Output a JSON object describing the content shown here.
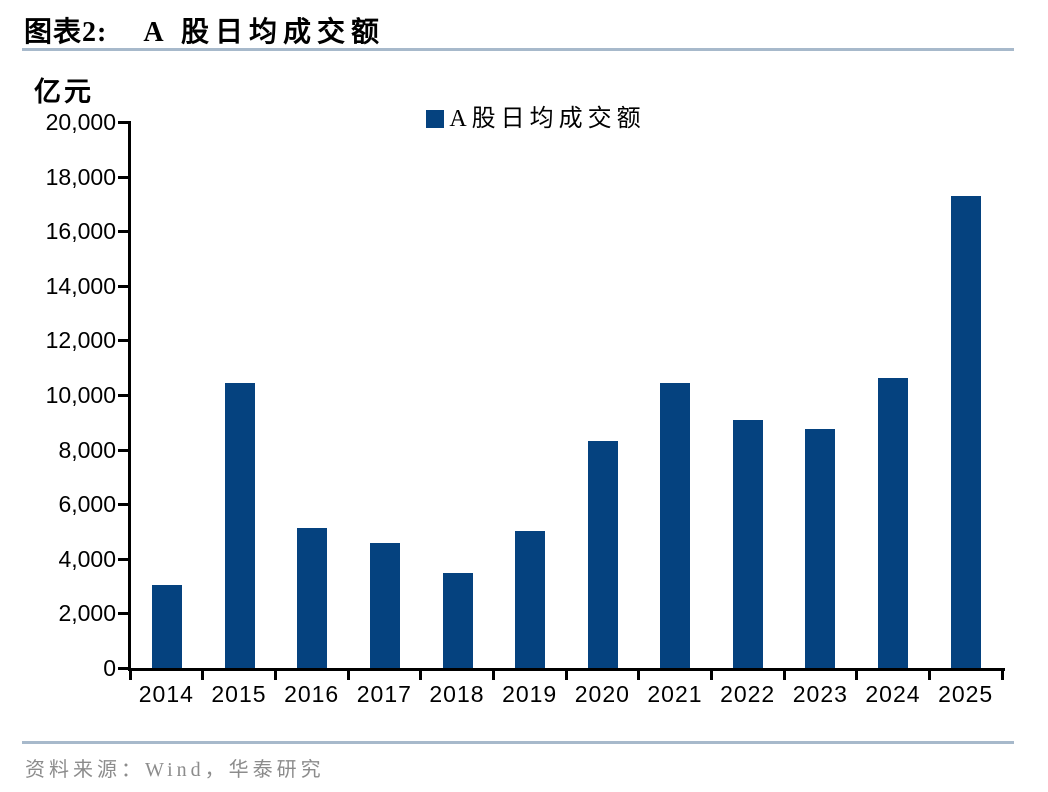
{
  "header": {
    "chart_label": "图表2:",
    "chart_title": "A 股日均成交额"
  },
  "y_axis": {
    "unit": "亿元",
    "min": 0,
    "max": 20000,
    "step": 2000,
    "tick_labels": [
      "0",
      "2,000",
      "4,000",
      "6,000",
      "8,000",
      "10,000",
      "12,000",
      "14,000",
      "16,000",
      "18,000",
      "20,000"
    ]
  },
  "legend": {
    "label": "A股日均成交额"
  },
  "footer": {
    "source": "资料来源：Wind，华泰研究"
  },
  "colors": {
    "bar": "#05427F",
    "divider": "#A7B9CB",
    "source_text": "#8C8C8C",
    "axis": "#000000"
  },
  "chart_data": {
    "type": "bar",
    "title": "A 股日均成交额",
    "unit": "亿元",
    "categories": [
      "2014",
      "2015",
      "2016",
      "2017",
      "2018",
      "2019",
      "2020",
      "2021",
      "2022",
      "2023",
      "2024",
      "2025"
    ],
    "values": [
      3050,
      10430,
      5130,
      4580,
      3490,
      5010,
      8300,
      10440,
      9070,
      8740,
      10610,
      17300
    ],
    "series": [
      {
        "name": "A股日均成交额",
        "values": [
          3050,
          10430,
          5130,
          4580,
          3490,
          5010,
          8300,
          10440,
          9070,
          8740,
          10610,
          17300
        ]
      }
    ],
    "xlabel": "",
    "ylabel": "亿元",
    "ylim": [
      0,
      20000
    ],
    "ytick_step": 2000,
    "grid": false,
    "legend_position": "top-center"
  }
}
